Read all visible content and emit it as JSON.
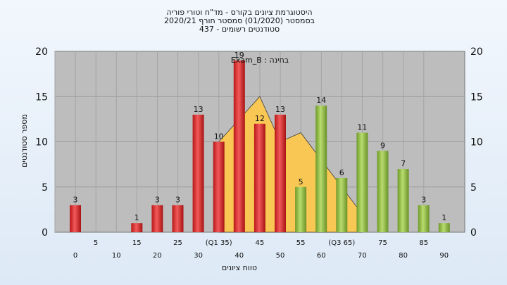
{
  "chart_data": {
    "type": "bar",
    "title_lines": [
      "היסטוגרמת ציונים בקורס - מד\"ח וטורי פוריה",
      "בסמסטר  (01/2020)  סמסטר חורף  2020/21",
      "סטודנטים רשומים - 437"
    ],
    "annotation": "Exam_B : בחינה",
    "xlabel": "טווח ציונים",
    "ylabel": "מספר סטודנטים",
    "ylim": [
      0,
      20
    ],
    "yticks": [
      0,
      5,
      10,
      15,
      20
    ],
    "grid": true,
    "x_tick_labels": [
      {
        "x": 0,
        "label": "0"
      },
      {
        "x": 5,
        "label": "5"
      },
      {
        "x": 10,
        "label": "10"
      },
      {
        "x": 15,
        "label": "15"
      },
      {
        "x": 20,
        "label": "20"
      },
      {
        "x": 25,
        "label": "25"
      },
      {
        "x": 30,
        "label": "30"
      },
      {
        "x": 35,
        "label": "(Q1 35)"
      },
      {
        "x": 40,
        "label": "40"
      },
      {
        "x": 45,
        "label": "45"
      },
      {
        "x": 50,
        "label": "50"
      },
      {
        "x": 55,
        "label": "55"
      },
      {
        "x": 60,
        "label": "60"
      },
      {
        "x": 65,
        "label": "(Q3 65)"
      },
      {
        "x": 70,
        "label": "70"
      },
      {
        "x": 75,
        "label": "75"
      },
      {
        "x": 80,
        "label": "80"
      },
      {
        "x": 85,
        "label": "85"
      },
      {
        "x": 90,
        "label": "90"
      }
    ],
    "bars": [
      {
        "x": 0,
        "value": 3,
        "label": "3",
        "color": "red"
      },
      {
        "x": 5,
        "value": 0,
        "label": "",
        "color": "red"
      },
      {
        "x": 10,
        "value": 0,
        "label": "",
        "color": "red"
      },
      {
        "x": 15,
        "value": 1,
        "label": "1",
        "color": "red"
      },
      {
        "x": 20,
        "value": 3,
        "label": "3",
        "color": "red"
      },
      {
        "x": 25,
        "value": 3,
        "label": "3",
        "color": "red"
      },
      {
        "x": 30,
        "value": 13,
        "label": "13",
        "color": "red"
      },
      {
        "x": 35,
        "value": 10,
        "label": "10",
        "color": "red"
      },
      {
        "x": 40,
        "value": 19,
        "label": "19",
        "color": "red"
      },
      {
        "x": 45,
        "value": 12,
        "label": "12",
        "color": "red"
      },
      {
        "x": 50,
        "value": 13,
        "label": "13",
        "color": "red"
      },
      {
        "x": 55,
        "value": 5,
        "label": "5",
        "color": "green"
      },
      {
        "x": 60,
        "value": 14,
        "label": "14",
        "color": "green"
      },
      {
        "x": 65,
        "value": 6,
        "label": "6",
        "color": "green"
      },
      {
        "x": 70,
        "value": 11,
        "label": "11",
        "color": "green"
      },
      {
        "x": 75,
        "value": 9,
        "label": "9",
        "color": "green"
      },
      {
        "x": 80,
        "value": 7,
        "label": "7",
        "color": "green"
      },
      {
        "x": 85,
        "value": 3,
        "label": "3",
        "color": "green"
      },
      {
        "x": 90,
        "value": 1,
        "label": "1",
        "color": "green"
      }
    ],
    "background_area": {
      "color": "#fdc94f",
      "points": [
        [
          35,
          10
        ],
        [
          45,
          15
        ],
        [
          50,
          10
        ],
        [
          55,
          11
        ],
        [
          60,
          8
        ],
        [
          65,
          5
        ],
        [
          70,
          2
        ]
      ]
    },
    "colors": {
      "red": "#e63b3b",
      "green": "#9cc94a",
      "plot_bg": "#bdbdbd"
    }
  }
}
